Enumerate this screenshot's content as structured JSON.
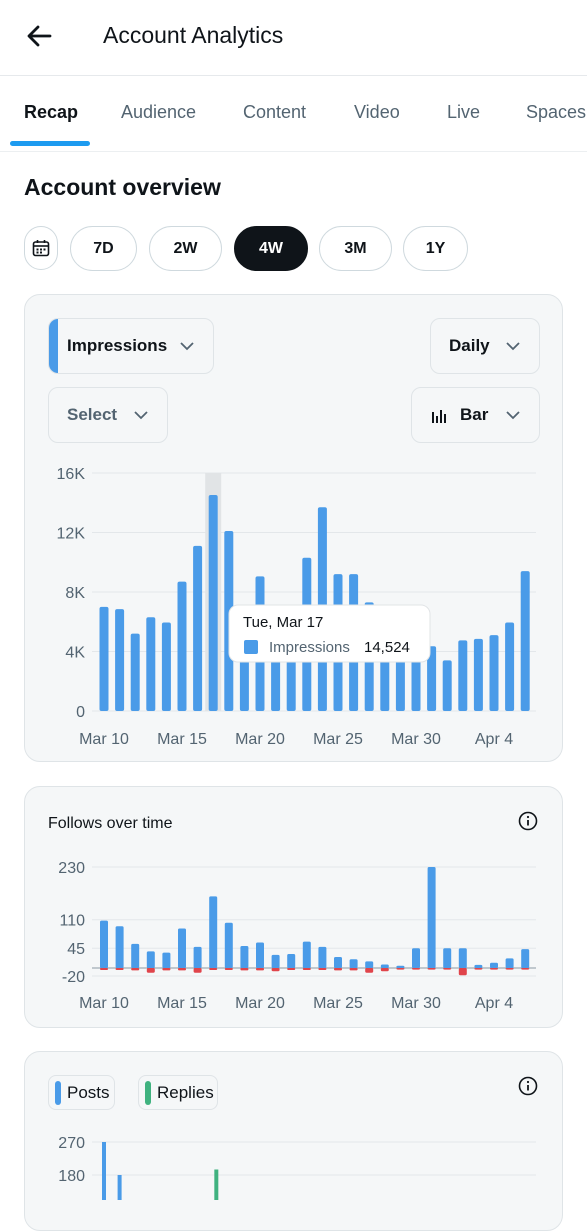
{
  "header": {
    "title": "Account Analytics"
  },
  "tabs": [
    {
      "label": "Recap",
      "active": true
    },
    {
      "label": "Audience"
    },
    {
      "label": "Content"
    },
    {
      "label": "Video"
    },
    {
      "label": "Live"
    },
    {
      "label": "Spaces"
    }
  ],
  "overview": {
    "title": "Account overview",
    "ranges": [
      {
        "label": "7D"
      },
      {
        "label": "2W"
      },
      {
        "label": "4W",
        "active": true
      },
      {
        "label": "3M"
      },
      {
        "label": "1Y"
      }
    ]
  },
  "controls": {
    "metric": "Impressions",
    "interval": "Daily",
    "compare": "Select",
    "chart_type": "Bar"
  },
  "colors": {
    "blue": "#4a9be8",
    "red": "#e0444b",
    "green": "#3fb27f",
    "highlight": "#e1e4e6"
  },
  "follows": {
    "title": "Follows over time"
  },
  "posts_legend": {
    "posts": "Posts",
    "replies": "Replies"
  },
  "chart_data": [
    {
      "type": "bar",
      "title": "",
      "series": [
        {
          "name": "Impressions",
          "values": [
            7000,
            6850,
            5200,
            6300,
            5950,
            8700,
            11100,
            14524,
            12100,
            5500,
            9050,
            5000,
            5100,
            10300,
            13700,
            9200,
            9200,
            7300,
            5100,
            4700,
            5200,
            4350,
            3400,
            4750,
            4850,
            5100,
            5950,
            9400
          ]
        }
      ],
      "x_tick_labels": [
        "Mar 10",
        "Mar 15",
        "Mar 20",
        "Mar 25",
        "Mar 30",
        "Apr 4"
      ],
      "y_ticks": [
        "0",
        "4K",
        "8K",
        "12K",
        "16K"
      ],
      "ylim": [
        0,
        16000
      ],
      "highlighted_index": 7,
      "tooltip": {
        "date": "Tue, Mar 17",
        "series": "Impressions",
        "value": "14,524"
      },
      "grid": true
    },
    {
      "type": "bar",
      "title": "Follows over time",
      "series": [
        {
          "name": "",
          "values": [
            108,
            95,
            55,
            38,
            35,
            90,
            48,
            163,
            103,
            50,
            58,
            30,
            32,
            60,
            48,
            25,
            20,
            15,
            8,
            5,
            45,
            230,
            45,
            45,
            7,
            12,
            22,
            43
          ]
        },
        {
          "name": "",
          "values": [
            -5,
            -5,
            -6,
            -12,
            -6,
            -6,
            -12,
            -5,
            -5,
            -6,
            -6,
            -8,
            -5,
            -5,
            -5,
            -6,
            -6,
            -12,
            -8,
            -4,
            -4,
            -4,
            -4,
            -18,
            -4,
            -4,
            -4,
            -4
          ]
        }
      ],
      "x_tick_labels": [
        "Mar 10",
        "Mar 15",
        "Mar 20",
        "Mar 25",
        "Mar 30",
        "Apr 4"
      ],
      "y_ticks": [
        "-20",
        "45",
        "110",
        "230"
      ],
      "ylim": [
        -20,
        230
      ],
      "grid": true
    },
    {
      "type": "bar",
      "series": [
        {
          "name": "Posts",
          "values": [
            270,
            180
          ]
        },
        {
          "name": "Replies",
          "values": [
            195
          ]
        }
      ],
      "y_ticks": [
        "180",
        "270"
      ],
      "ylim": [
        0,
        270
      ]
    }
  ]
}
